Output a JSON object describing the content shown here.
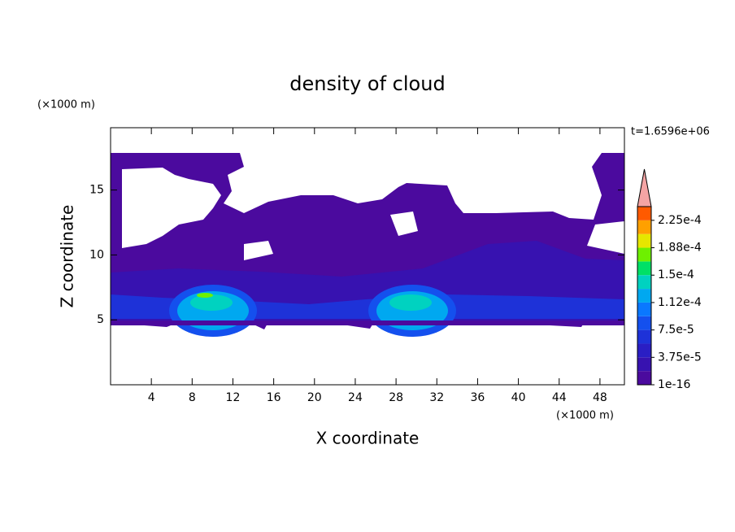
{
  "chart_data": {
    "type": "contour",
    "title": "density of cloud",
    "x_label": "X coordinate",
    "y_label": "Z coordinate",
    "x_unit": "(×1000 m)",
    "y_unit": "(×1000 m)",
    "time_label": "t=1.6596e+06",
    "xlim": [
      0,
      50.4
    ],
    "ylim": [
      0,
      19.8
    ],
    "xticks": [
      4,
      8,
      12,
      16,
      20,
      24,
      28,
      32,
      36,
      40,
      44,
      48
    ],
    "yticks": [
      5,
      10,
      15
    ],
    "colorbar": {
      "lim": [
        0,
        0.00024375
      ],
      "ticks": [
        {
          "value": 1e-16,
          "label": "1e-16"
        },
        {
          "value": 3.75e-05,
          "label": "3.75e-5"
        },
        {
          "value": 7.5e-05,
          "label": "7.5e-5"
        },
        {
          "value": 0.0001125,
          "label": "1.12e-4"
        },
        {
          "value": 0.00015,
          "label": "1.5e-4"
        },
        {
          "value": 0.0001875,
          "label": "1.88e-4"
        },
        {
          "value": 0.000225,
          "label": "2.25e-4"
        }
      ],
      "colors": [
        "#4b0a9e",
        "#3712b0",
        "#2a1ec4",
        "#1e32d8",
        "#1450ee",
        "#0a78ff",
        "#00a8f0",
        "#00d2c0",
        "#00e066",
        "#6ef000",
        "#e6e600",
        "#ffa000",
        "#ff5a00",
        "#ff2a10"
      ],
      "extend_color": "#f4a4a4"
    }
  }
}
